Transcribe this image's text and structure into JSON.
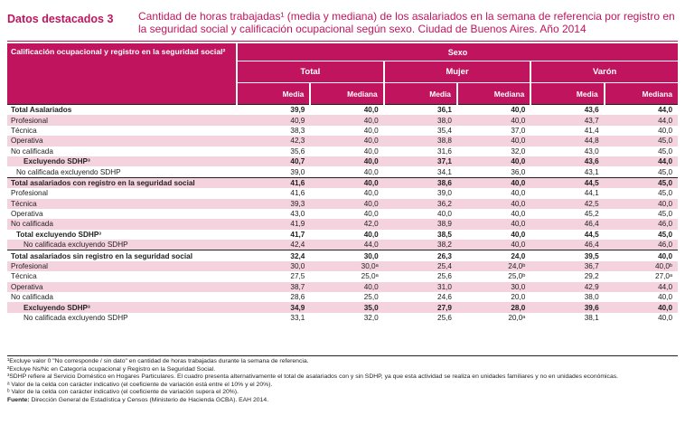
{
  "header": {
    "label": "Datos destacados 3",
    "title": "Cantidad de horas trabajadas¹ (media y mediana) de los asalariados en la semana de referencia por registro en la seguridad social y calificación ocupacional según sexo. Ciudad de Buenos Aires. Año 2014"
  },
  "table": {
    "row_header": "Calificación ocupacional y registro en la seguridad social²",
    "group_header": "Sexo",
    "groups": [
      "Total",
      "Mujer",
      "Varón"
    ],
    "subcols": [
      "Media",
      "Mediana"
    ],
    "rows": [
      {
        "label": "Total Asalariados",
        "indent": 0,
        "bold": true,
        "shade": false,
        "bl": true,
        "v": [
          "39,9",
          "40,0",
          "36,1",
          "40,0",
          "43,6",
          "44,0"
        ]
      },
      {
        "label": "Profesional",
        "indent": 0,
        "bold": false,
        "shade": true,
        "bl": false,
        "v": [
          "40,9",
          "40,0",
          "38,0",
          "40,0",
          "43,7",
          "44,0"
        ]
      },
      {
        "label": "Técnica",
        "indent": 0,
        "bold": false,
        "shade": false,
        "bl": false,
        "v": [
          "38,3",
          "40,0",
          "35,4",
          "37,0",
          "41,4",
          "40,0"
        ]
      },
      {
        "label": "Operativa",
        "indent": 0,
        "bold": false,
        "shade": true,
        "bl": false,
        "v": [
          "42,3",
          "40,0",
          "38,8",
          "40,0",
          "44,8",
          "45,0"
        ]
      },
      {
        "label": "No calificada",
        "indent": 0,
        "bold": false,
        "shade": false,
        "bl": false,
        "v": [
          "35,6",
          "40,0",
          "31,6",
          "32,0",
          "43,0",
          "45,0"
        ]
      },
      {
        "label": "Excluyendo SDHP³",
        "indent": 18,
        "bold": true,
        "shade": true,
        "bl": false,
        "v": [
          "40,7",
          "40,0",
          "37,1",
          "40,0",
          "43,6",
          "44,0"
        ]
      },
      {
        "label": "No calificada excluyendo SDHP",
        "indent": 10,
        "bold": false,
        "shade": false,
        "bl": false,
        "v": [
          "39,0",
          "40,0",
          "34,1",
          "36,0",
          "43,1",
          "45,0"
        ]
      },
      {
        "label": "Total asalariados con registro en la seguridad social",
        "indent": 0,
        "bold": true,
        "shade": true,
        "bl": true,
        "v": [
          "41,6",
          "40,0",
          "38,6",
          "40,0",
          "44,5",
          "45,0"
        ]
      },
      {
        "label": "Profesional",
        "indent": 0,
        "bold": false,
        "shade": false,
        "bl": false,
        "v": [
          "41,6",
          "40,0",
          "39,0",
          "40,0",
          "44,1",
          "45,0"
        ]
      },
      {
        "label": "Técnica",
        "indent": 0,
        "bold": false,
        "shade": true,
        "bl": false,
        "v": [
          "39,3",
          "40,0",
          "36,2",
          "40,0",
          "42,5",
          "40,0"
        ]
      },
      {
        "label": "Operativa",
        "indent": 0,
        "bold": false,
        "shade": false,
        "bl": false,
        "v": [
          "43,0",
          "40,0",
          "40,0",
          "40,0",
          "45,2",
          "45,0"
        ]
      },
      {
        "label": "No calificada",
        "indent": 0,
        "bold": false,
        "shade": true,
        "bl": false,
        "v": [
          "41,9",
          "42,0",
          "38,9",
          "40,0",
          "46,4",
          "46,0"
        ]
      },
      {
        "label": "Total excluyendo SDHP³",
        "indent": 10,
        "bold": true,
        "shade": false,
        "bl": false,
        "v": [
          "41,7",
          "40,0",
          "38,5",
          "40,0",
          "44,5",
          "45,0"
        ]
      },
      {
        "label": "No calificada excluyendo SDHP",
        "indent": 18,
        "bold": false,
        "shade": true,
        "bl": false,
        "v": [
          "42,4",
          "44,0",
          "38,2",
          "40,0",
          "46,4",
          "46,0"
        ]
      },
      {
        "label": "Total asalariados sin registro en la seguridad social",
        "indent": 0,
        "bold": true,
        "shade": false,
        "bl": true,
        "v": [
          "32,4",
          "30,0",
          "26,3",
          "24,0",
          "39,5",
          "40,0"
        ]
      },
      {
        "label": "Profesional",
        "indent": 0,
        "bold": false,
        "shade": true,
        "bl": false,
        "v": [
          "30,0",
          "30,0ᵃ",
          "25,4",
          "24,0ᵇ",
          "36,7",
          "40,0ᵇ"
        ]
      },
      {
        "label": "Técnica",
        "indent": 0,
        "bold": false,
        "shade": false,
        "bl": false,
        "v": [
          "27,5",
          "25,0ᵃ",
          "25,6",
          "25,0ᵇ",
          "29,2",
          "27,0ᵃ"
        ]
      },
      {
        "label": "Operativa",
        "indent": 0,
        "bold": false,
        "shade": true,
        "bl": false,
        "v": [
          "38,7",
          "40,0",
          "31,0",
          "30,0",
          "42,9",
          "44,0"
        ]
      },
      {
        "label": "No calificada",
        "indent": 0,
        "bold": false,
        "shade": false,
        "bl": false,
        "v": [
          "28,6",
          "25,0",
          "24,6",
          "20,0",
          "38,0",
          "40,0"
        ]
      },
      {
        "label": "Excluyendo SDHP³",
        "indent": 18,
        "bold": true,
        "shade": true,
        "bl": false,
        "v": [
          "34,9",
          "35,0",
          "27,9",
          "28,0",
          "39,6",
          "40,0"
        ]
      },
      {
        "label": "No calificada excluyendo SDHP",
        "indent": 18,
        "bold": false,
        "shade": false,
        "bl": false,
        "v": [
          "33,1",
          "32,0",
          "25,6",
          "20,0ᵃ",
          "38,1",
          "40,0"
        ]
      }
    ]
  },
  "notes": [
    "¹Excluye valor 0 \"No corresponde / sin dato\" en cantidad de horas trabajadas durante la semana de referencia.",
    "²Excluye Ns/Nc en Categoría ocupacional y Registro en la Seguridad Social.",
    "³SDHP refiere al Servicio Doméstico en Hogares Particulares. El cuadro presenta alternativamente el total de asalariados con y sin SDHP, ya que esta actividad se realiza en unidades familiares y no en unidades económicas.",
    "ᵃ Valor de la celda con carácter indicativo (el coeficiente de variación está entre el 10% y el 20%).",
    "ᵇ Valor de la celda con carácter indicativo (el coeficiente de variación supera el 20%)."
  ],
  "source_label": "Fuente:",
  "source_text": "Dirección General de Estadística y Censos (Ministerio de Hacienda GCBA). EAH 2014."
}
